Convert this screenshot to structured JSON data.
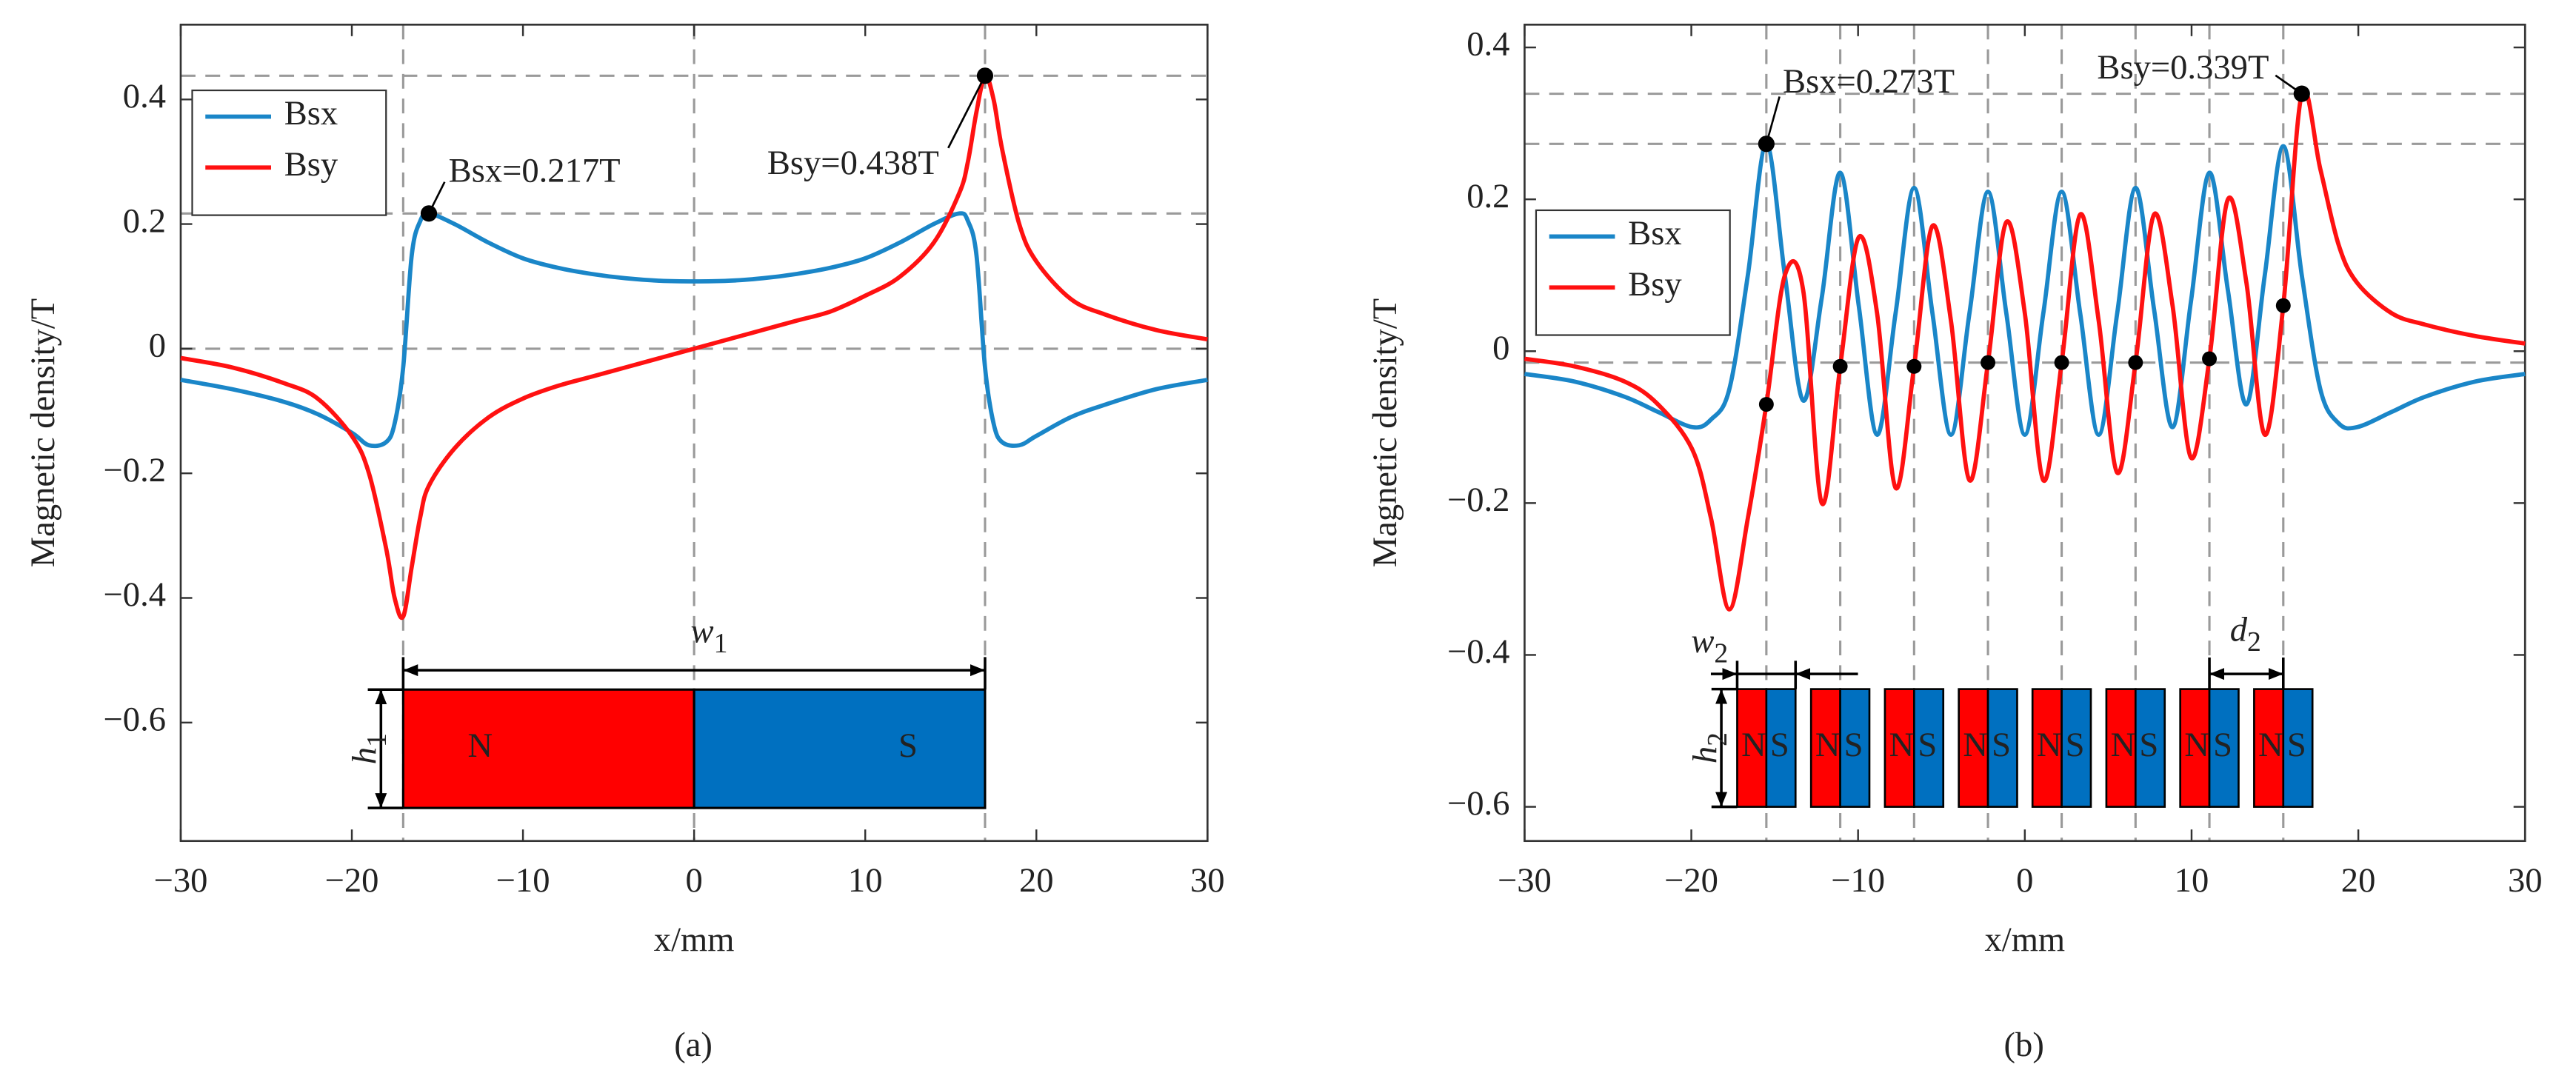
{
  "chart_data": [
    {
      "type": "line",
      "panel_label": "(a)",
      "xlabel": "x/mm",
      "ylabel": "Magnetic density/T",
      "x": [
        -30,
        -27,
        -24,
        -22,
        -20,
        -19,
        -18,
        -17.5,
        -17,
        -16.5,
        -16,
        -15.5,
        -14,
        -12,
        -10,
        -8,
        -6,
        -4,
        -2,
        0,
        2,
        4,
        6,
        8,
        10,
        12,
        14,
        15.5,
        16,
        16.5,
        17,
        17.5,
        18,
        19,
        20,
        22,
        24,
        27,
        30
      ],
      "series": [
        {
          "name": "Bsx",
          "color": "#1a86c8",
          "values": [
            -0.05,
            -0.065,
            -0.085,
            -0.105,
            -0.135,
            -0.155,
            -0.15,
            -0.12,
            -0.03,
            0.15,
            0.205,
            0.217,
            0.2,
            0.17,
            0.145,
            0.13,
            0.12,
            0.113,
            0.109,
            0.108,
            0.109,
            0.113,
            0.12,
            0.13,
            0.145,
            0.17,
            0.2,
            0.217,
            0.205,
            0.15,
            -0.03,
            -0.12,
            -0.15,
            -0.155,
            -0.14,
            -0.11,
            -0.09,
            -0.065,
            -0.05
          ]
        },
        {
          "name": "Bsy",
          "color": "#ff1111",
          "values": [
            -0.015,
            -0.03,
            -0.055,
            -0.08,
            -0.14,
            -0.2,
            -0.32,
            -0.4,
            -0.43,
            -0.35,
            -0.27,
            -0.22,
            -0.16,
            -0.11,
            -0.08,
            -0.06,
            -0.045,
            -0.03,
            -0.015,
            0,
            0.015,
            0.03,
            0.045,
            0.06,
            0.085,
            0.115,
            0.17,
            0.25,
            0.3,
            0.38,
            0.438,
            0.4,
            0.32,
            0.2,
            0.14,
            0.08,
            0.055,
            0.03,
            0.015
          ]
        }
      ],
      "xlim": [
        -30,
        30
      ],
      "ylim": [
        -0.79,
        0.52
      ],
      "xticks": [
        {
          "value": -30,
          "label": "−30"
        },
        {
          "value": -20,
          "label": "−20"
        },
        {
          "value": -10,
          "label": "−10"
        },
        0,
        10,
        20,
        30
      ],
      "yticks": [
        {
          "value": -0.6,
          "label": "−0.6"
        },
        {
          "value": -0.4,
          "label": "−0.4"
        },
        {
          "value": -0.2,
          "label": "−0.2"
        },
        0,
        0.2,
        0.4
      ],
      "legend": "upper left",
      "annotations": [
        {
          "text": "Bsx=0.217T",
          "x": -15.5,
          "y": 0.217
        },
        {
          "text": "Bsy=0.438T",
          "x": 17,
          "y": 0.438
        }
      ],
      "ref_x": [
        -17,
        0,
        17
      ],
      "ref_y": [
        0.438,
        0.217,
        0
      ],
      "inset": {
        "n": "N",
        "s": "S",
        "w": {
          "main": "w",
          "sub": "1"
        },
        "h": {
          "main": "h",
          "sub": "1"
        }
      }
    },
    {
      "type": "line",
      "panel_label": "(b)",
      "xlabel": "x/mm",
      "ylabel": "Magnetic density/T",
      "x": [
        -30,
        -27,
        -24,
        -22,
        -19.93,
        -18.82,
        -17.72,
        -16.61,
        -15.5,
        -14.39,
        -13.29,
        -12.18,
        -11.07,
        -9.96,
        -8.86,
        -7.75,
        -6.64,
        -5.54,
        -4.43,
        -3.32,
        -2.21,
        -1.11,
        0,
        1.11,
        2.21,
        3.32,
        4.43,
        5.54,
        6.64,
        7.75,
        8.86,
        9.96,
        11.07,
        12.18,
        13.29,
        14.39,
        15.5,
        16.61,
        17.72,
        18.82,
        19.93,
        22,
        24,
        27,
        30
      ],
      "series": [
        {
          "name": "Bsx",
          "color": "#1a86c8",
          "values": [
            -0.03,
            -0.04,
            -0.06,
            -0.08,
            -0.1,
            -0.09,
            -0.05,
            0.1,
            0.273,
            0.1,
            -0.065,
            0.07,
            0.235,
            0.06,
            -0.11,
            0.05,
            0.215,
            0.05,
            -0.11,
            0.05,
            0.21,
            0.05,
            -0.11,
            0.05,
            0.21,
            0.05,
            -0.11,
            0.05,
            0.215,
            0.055,
            -0.1,
            0.065,
            0.235,
            0.08,
            -0.07,
            0.1,
            0.27,
            0.1,
            -0.05,
            -0.095,
            -0.1,
            -0.08,
            -0.06,
            -0.04,
            -0.03
          ]
        },
        {
          "name": "Bsy",
          "color": "#ff1111",
          "values": [
            -0.01,
            -0.02,
            -0.04,
            -0.07,
            -0.13,
            -0.22,
            -0.34,
            -0.22,
            -0.07,
            0.1,
            0.08,
            -0.2,
            -0.02,
            0.15,
            0.05,
            -0.18,
            -0.02,
            0.165,
            0.04,
            -0.17,
            -0.015,
            0.17,
            0.05,
            -0.17,
            -0.015,
            0.18,
            0.04,
            -0.16,
            -0.015,
            0.18,
            0.06,
            -0.14,
            -0.01,
            0.2,
            0.09,
            -0.11,
            0.06,
            0.339,
            0.24,
            0.14,
            0.09,
            0.05,
            0.035,
            0.02,
            0.01
          ]
        }
      ],
      "xlim": [
        -30,
        30
      ],
      "ylim": [
        -0.645,
        0.43
      ],
      "xticks": [
        {
          "value": -30,
          "label": "−30"
        },
        {
          "value": -20,
          "label": "−20"
        },
        {
          "value": -10,
          "label": "−10"
        },
        0,
        10,
        20,
        30
      ],
      "yticks": [
        {
          "value": -0.6,
          "label": "−0.6"
        },
        {
          "value": -0.4,
          "label": "−0.4"
        },
        {
          "value": -0.2,
          "label": "−0.2"
        },
        0,
        0.2,
        0.4
      ],
      "legend": "center left",
      "annotations": [
        {
          "text": "Bsx=0.273T",
          "x": -15.5,
          "y": 0.273
        },
        {
          "text": "Bsy=0.339T",
          "x": 16.61,
          "y": 0.339
        }
      ],
      "markers": {
        "x": [
          -15.5,
          -11.07,
          -6.64,
          -2.21,
          2.21,
          6.64,
          11.07,
          15.5
        ],
        "y": [
          -0.07,
          -0.02,
          -0.02,
          -0.015,
          -0.015,
          -0.015,
          -0.01,
          0.06
        ]
      },
      "ref_x": [
        -15.5,
        -11.07,
        -6.64,
        -2.21,
        2.21,
        6.64,
        11.07,
        15.5
      ],
      "ref_y": [
        0.339,
        0.273,
        -0.015
      ],
      "inset": {
        "n": "N",
        "s": "S",
        "w": {
          "main": "w",
          "sub": "2"
        },
        "h": {
          "main": "h",
          "sub": "2"
        },
        "d": {
          "main": "d",
          "sub": "2"
        }
      }
    }
  ]
}
